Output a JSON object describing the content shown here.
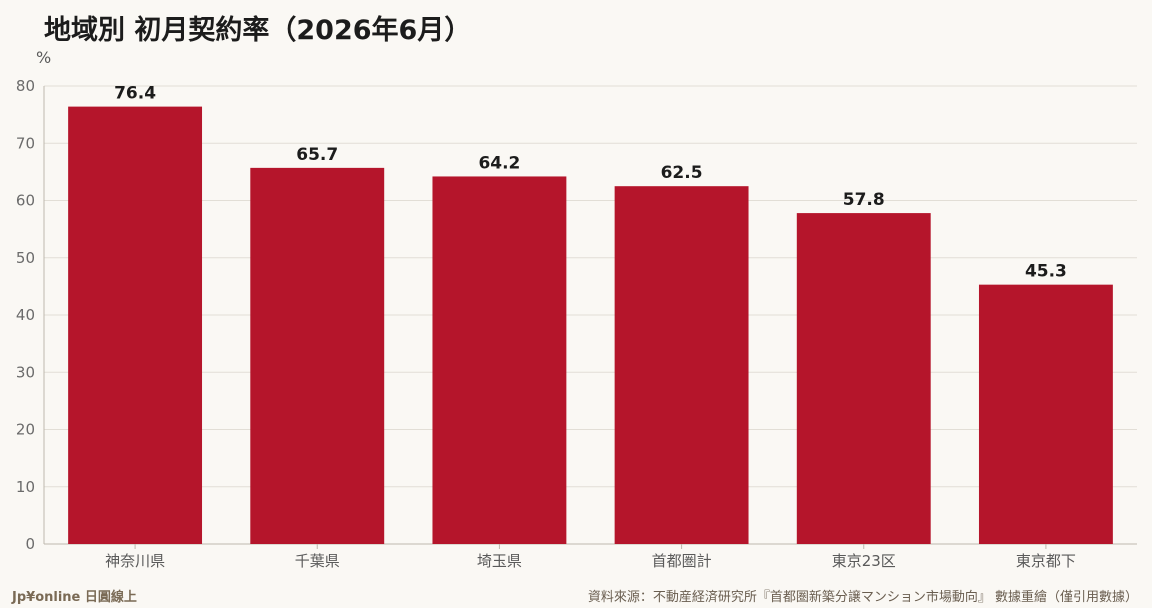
{
  "chart_data": {
    "type": "bar",
    "title": "地域別 初月契約率（2026年6月）",
    "ylabel": "%",
    "categories": [
      "神奈川県",
      "千葉県",
      "埼玉県",
      "首都圏計",
      "東京23区",
      "東京都下"
    ],
    "values": [
      76.4,
      65.7,
      64.2,
      62.5,
      57.8,
      45.3
    ],
    "value_labels": [
      "76.4",
      "65.7",
      "64.2",
      "62.5",
      "57.8",
      "45.3"
    ],
    "ylim": [
      0,
      80
    ],
    "yticks": [
      "0",
      "10",
      "20",
      "30",
      "40",
      "50",
      "60",
      "70",
      "80"
    ],
    "grid": true,
    "bar_color": "#b5152b"
  },
  "footer": {
    "brand": "Jp¥online 日圓線上",
    "source": "資料來源：不動産経済研究所『首都圏新築分譲マンション市場動向』 數據重繪（僅引用數據）"
  }
}
